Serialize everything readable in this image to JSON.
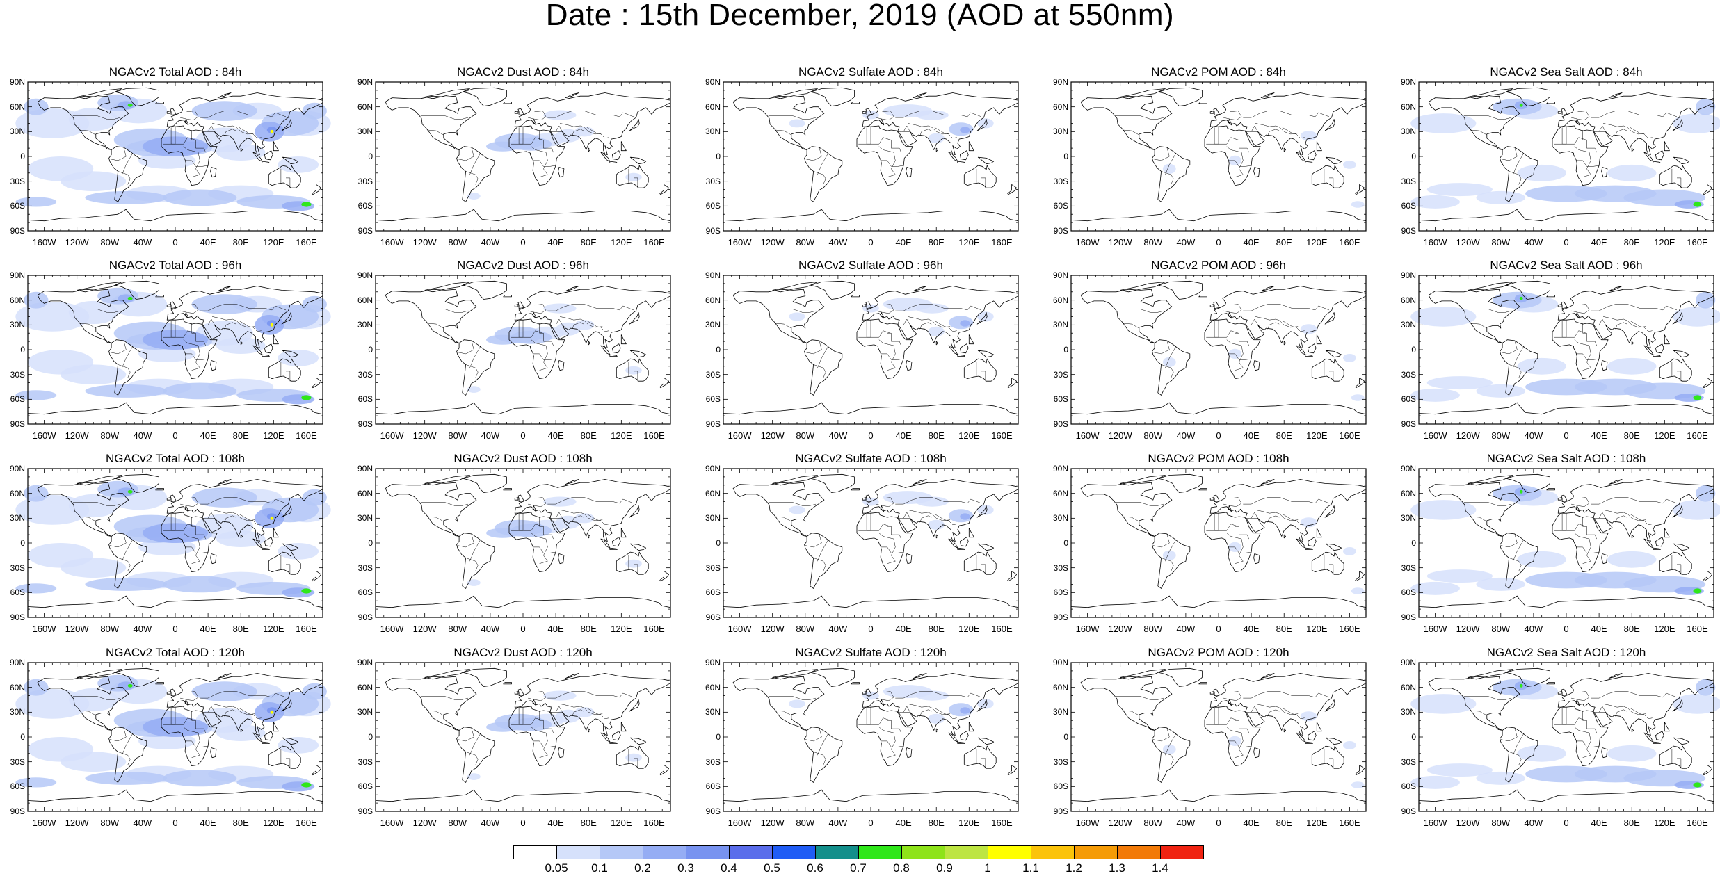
{
  "title": "Date : 15th December, 2019 (AOD at 550nm)",
  "lat_ticks": [
    "90N",
    "60N",
    "30N",
    "0",
    "30S",
    "60S",
    "90S"
  ],
  "lon_ticks": [
    "160W",
    "120W",
    "80W",
    "40W",
    "0",
    "40E",
    "80E",
    "120E",
    "160E"
  ],
  "lon_tick_values": [
    -160,
    -120,
    -80,
    -40,
    0,
    40,
    80,
    120,
    160
  ],
  "lat_tick_values": [
    90,
    60,
    30,
    0,
    -30,
    -60,
    -90
  ],
  "panels": [
    [
      {
        "title": "NGACv2 Total AOD : 84h",
        "species": "total"
      },
      {
        "title": "NGACv2 Dust AOD : 84h",
        "species": "dust"
      },
      {
        "title": "NGACv2 Sulfate AOD : 84h",
        "species": "sulfate"
      },
      {
        "title": "NGACv2 POM AOD : 84h",
        "species": "pom"
      },
      {
        "title": "NGACv2 Sea Salt AOD : 84h",
        "species": "seasalt"
      }
    ],
    [
      {
        "title": "NGACv2 Total AOD : 96h",
        "species": "total"
      },
      {
        "title": "NGACv2 Dust AOD : 96h",
        "species": "dust"
      },
      {
        "title": "NGACv2 Sulfate AOD : 96h",
        "species": "sulfate"
      },
      {
        "title": "NGACv2 POM AOD : 96h",
        "species": "pom"
      },
      {
        "title": "NGACv2 Sea Salt AOD : 96h",
        "species": "seasalt"
      }
    ],
    [
      {
        "title": "NGACv2 Total AOD : 108h",
        "species": "total"
      },
      {
        "title": "NGACv2 Dust AOD : 108h",
        "species": "dust"
      },
      {
        "title": "NGACv2 Sulfate AOD : 108h",
        "species": "sulfate"
      },
      {
        "title": "NGACv2 POM AOD : 108h",
        "species": "pom"
      },
      {
        "title": "NGACv2 Sea Salt AOD : 108h",
        "species": "seasalt"
      }
    ],
    [
      {
        "title": "NGACv2 Total AOD : 120h",
        "species": "total"
      },
      {
        "title": "NGACv2 Dust AOD : 120h",
        "species": "dust"
      },
      {
        "title": "NGACv2 Sulfate AOD : 120h",
        "species": "sulfate"
      },
      {
        "title": "NGACv2 POM AOD : 120h",
        "species": "pom"
      },
      {
        "title": "NGACv2 Sea Salt  AOD : 120h",
        "species": "seasalt"
      }
    ]
  ],
  "colorbar": {
    "labels": [
      "0.05",
      "0.1",
      "0.2",
      "0.3",
      "0.4",
      "0.5",
      "0.6",
      "0.7",
      "0.8",
      "0.9",
      "1",
      "1.1",
      "1.2",
      "1.3",
      "1.4"
    ],
    "colors": [
      "#ffffff",
      "#d6e1fb",
      "#b5c8f7",
      "#95adf4",
      "#7893f0",
      "#5a6deb",
      "#1f5cf5",
      "#138f8b",
      "#2fe71a",
      "#8ee31a",
      "#bde542",
      "#ffff00",
      "#fbc30a",
      "#f59b06",
      "#f27a08",
      "#f02311"
    ]
  },
  "plume_colors": {
    "lightest": "#d6e1fb",
    "light": "#b5c8f7",
    "medium": "#95adf4",
    "strong": "#7893f0",
    "green": "#2fe71a",
    "yellow": "#ffff00"
  }
}
